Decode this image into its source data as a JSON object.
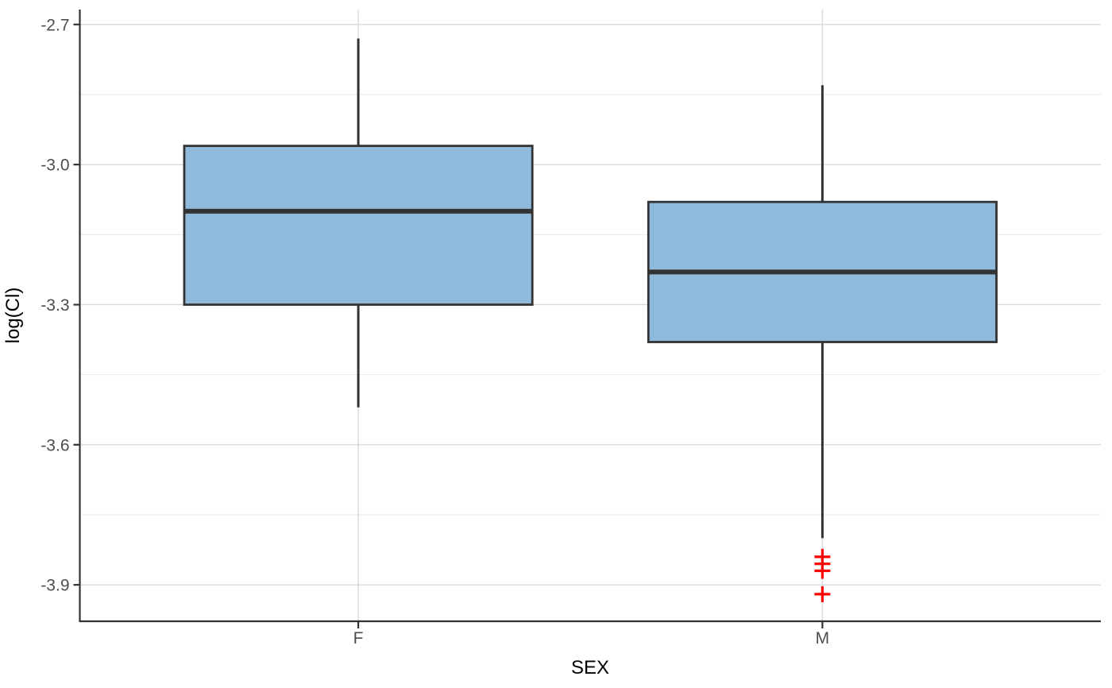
{
  "figure": {
    "background": "#FFFFFF"
  },
  "chart_data": {
    "type": "boxplot",
    "orientation": "vertical",
    "title": "",
    "xlabel": "SEX",
    "ylabel": "log(Cl)",
    "categories": [
      "F",
      "M"
    ],
    "y_ticks": [
      {
        "value": -2.7,
        "label": "-2.7"
      },
      {
        "value": -3.0,
        "label": "-3.0"
      },
      {
        "value": -3.3,
        "label": "-3.3"
      },
      {
        "value": -3.6,
        "label": "-3.6"
      },
      {
        "value": -3.9,
        "label": "-3.9"
      }
    ],
    "y_minor_ticks": [
      -2.85,
      -3.15,
      -3.45,
      -3.75
    ],
    "ylim": [
      -3.978,
      -2.668
    ],
    "grid": true,
    "legend": null,
    "box_width_fraction": 0.75,
    "outlier_marker": "plus",
    "series": [
      {
        "category": "F",
        "lower_whisker": -3.52,
        "q1": -3.3,
        "median": -3.1,
        "q3": -2.96,
        "upper_whisker": -2.73,
        "outliers": []
      },
      {
        "category": "M",
        "lower_whisker": -3.8,
        "q1": -3.38,
        "median": -3.23,
        "q3": -3.08,
        "upper_whisker": -2.83,
        "outliers": [
          -3.84,
          -3.855,
          -3.87,
          -3.92
        ]
      }
    ],
    "colors": {
      "box_fill": "#90BADC",
      "box_border": "#333333",
      "median": "#333333",
      "whisker": "#333333",
      "outlier": "#FF0000",
      "grid_major": "#D9D9D9",
      "grid_minor": "#E9E9E9",
      "axis_line": "#333333",
      "tick_mark": "#333333",
      "tick_label": "#4D4D4D",
      "axis_title": "#000000"
    }
  }
}
